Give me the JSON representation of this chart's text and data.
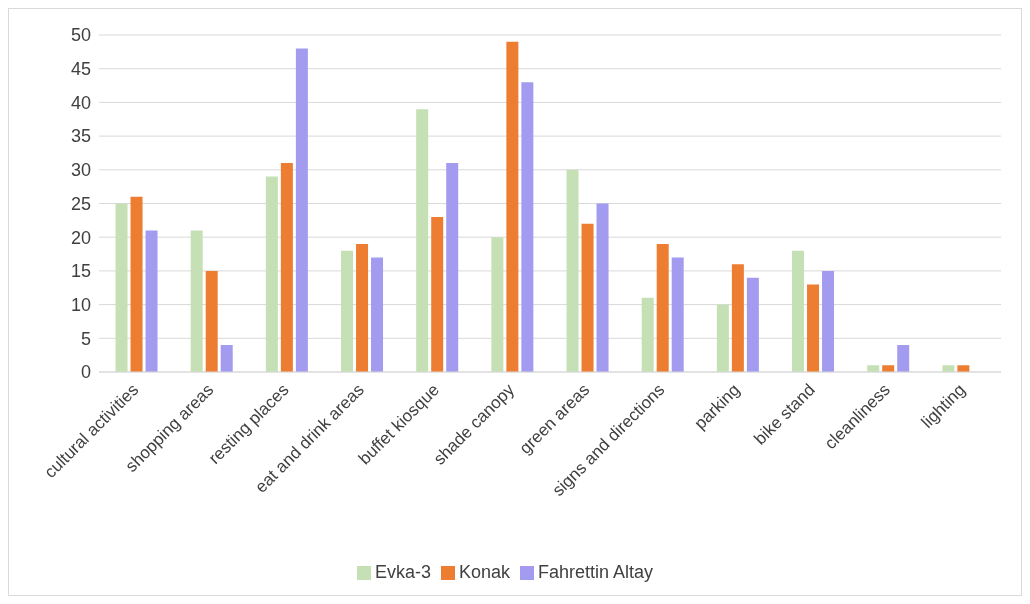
{
  "chart_data": {
    "type": "bar",
    "categories": [
      "cultural activities",
      "shopping areas",
      "resting places",
      "eat and drink areas",
      "buffet kiosque",
      "shade canopy",
      "green areas",
      "signs and directions",
      "parking",
      "bike stand",
      "cleanliness",
      "lighting"
    ],
    "series": [
      {
        "name": "Evka-3",
        "color": "#c5e0b4",
        "values": [
          25,
          21,
          29,
          18,
          39,
          20,
          30,
          11,
          10,
          18,
          1,
          1
        ]
      },
      {
        "name": "Konak",
        "color": "#ed7d31",
        "values": [
          26,
          15,
          31,
          19,
          23,
          49,
          22,
          19,
          16,
          13,
          1,
          1
        ]
      },
      {
        "name": "Fahrettin Altay",
        "color": "#a29bf0",
        "values": [
          21,
          4,
          48,
          17,
          31,
          43,
          25,
          17,
          14,
          15,
          4,
          0
        ]
      }
    ],
    "ylim": [
      0,
      50
    ],
    "yticks": [
      0,
      5,
      10,
      15,
      20,
      25,
      30,
      35,
      40,
      45,
      50
    ],
    "grid": "y",
    "legend": "bottom"
  }
}
